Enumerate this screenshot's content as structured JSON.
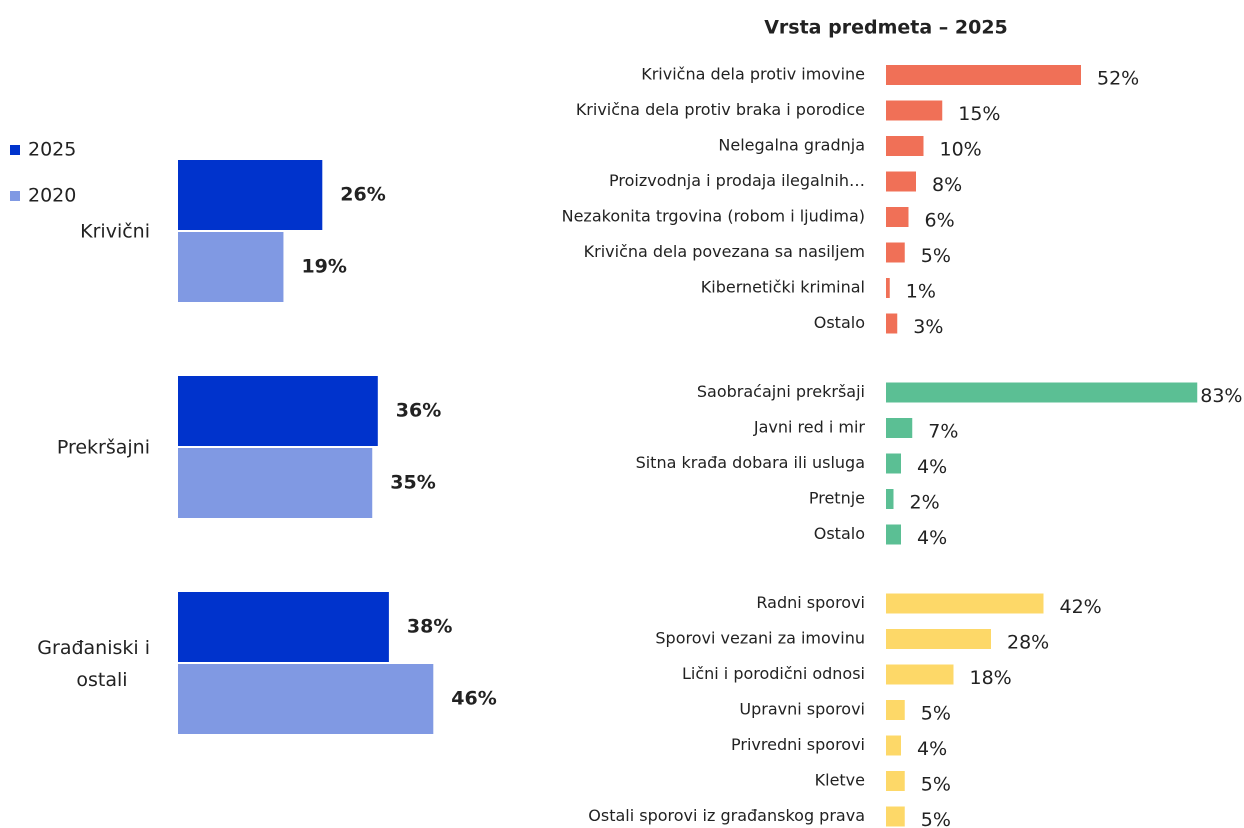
{
  "chart_data": [
    {
      "type": "grouped_hbar",
      "categories": [
        "Krivični",
        "Prekršajni",
        "Građaniski i ostali"
      ],
      "series": [
        {
          "name": "2025",
          "color": "#0033cc",
          "values": [
            26,
            36,
            38
          ],
          "value_labels": [
            "26%",
            "36%",
            "38%"
          ]
        },
        {
          "name": "2020",
          "color": "#8099e3",
          "values": [
            19,
            35,
            46
          ],
          "value_labels": [
            "19%",
            "35%",
            "46%"
          ]
        }
      ],
      "legend": "upper left"
    },
    {
      "type": "grouped_categories_hbar",
      "title": "Vrsta predmeta – 2025",
      "groups": [
        {
          "color": "#f07057",
          "categories": [
            "Krivična dela protiv imovine",
            "Krivična dela protiv braka i porodice",
            "Nelegalna gradnja",
            "Proizvodnja i prodaja ilegalnih…",
            "Nezakonita trgovina (robom i ljudima)",
            "Krivična dela povezana sa nasiljem",
            "Kibernetički kriminal",
            "Ostalo"
          ],
          "values": [
            52,
            15,
            10,
            8,
            6,
            5,
            1,
            3
          ],
          "value_labels": [
            "52%",
            "15%",
            "10%",
            "8%",
            "6%",
            "5%",
            "1%",
            "3%"
          ]
        },
        {
          "color": "#5bbf94",
          "categories": [
            "Saobraćajni prekršaji",
            "Javni red i mir",
            "Sitna krađa dobara ili usluga",
            "Pretnje",
            "Ostalo"
          ],
          "values": [
            83,
            7,
            4,
            2,
            4
          ],
          "value_labels": [
            "83%",
            "7%",
            "4%",
            "2%",
            "4%"
          ]
        },
        {
          "color": "#fdd868",
          "categories": [
            "Radni sporovi",
            "Sporovi vezani za imovinu",
            "Lični i porodični odnosi",
            "Upravni sporovi",
            "Privredni sporovi",
            "Kletve",
            "Ostali sporovi iz građanskog prava"
          ],
          "values": [
            42,
            28,
            18,
            5,
            4,
            5,
            5
          ],
          "value_labels": [
            "42%",
            "28%",
            "18%",
            "5%",
            "4%",
            "5%",
            "5%"
          ]
        }
      ]
    }
  ]
}
